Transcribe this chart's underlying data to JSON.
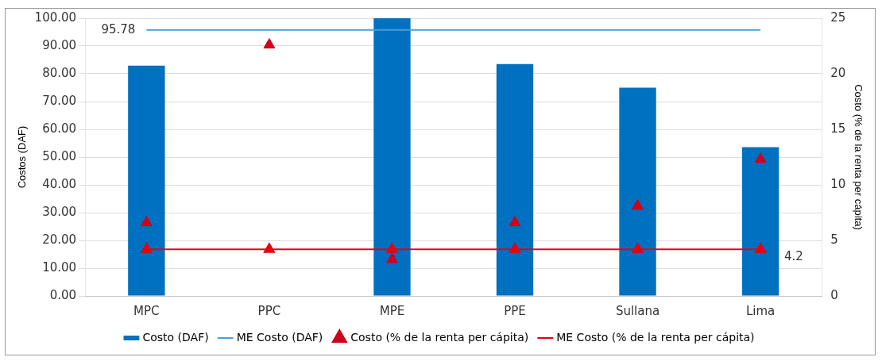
{
  "chart_data": {
    "type": "bar",
    "categories": [
      "MPC",
      "PPC",
      "MPE",
      "PPE",
      "Sullana",
      "Lima"
    ],
    "ylabel": "Costos (DAF)",
    "y2label": "Costo (% de la renta per cápita)",
    "ylim": [
      0,
      100
    ],
    "yticks": [
      {
        "value": 0,
        "label": "0.00"
      },
      {
        "value": 10,
        "label": "10.00"
      },
      {
        "value": 20,
        "label": "20.00"
      },
      {
        "value": 30,
        "label": "30.00"
      },
      {
        "value": 40,
        "label": "40.00"
      },
      {
        "value": 50,
        "label": "50.00"
      },
      {
        "value": 60,
        "label": "60.00"
      },
      {
        "value": 70,
        "label": "70.00"
      },
      {
        "value": 80,
        "label": "80.00"
      },
      {
        "value": 90,
        "label": "90.00"
      },
      {
        "value": 100,
        "label": "100.00"
      }
    ],
    "y2lim": [
      0,
      25
    ],
    "y2ticks": [
      0,
      5,
      10,
      15,
      20,
      25
    ],
    "grid": "y",
    "legend": "bottom",
    "series": [
      {
        "name": "Costo (DAF)",
        "color": "#0070c0",
        "values": [
          82.9,
          null,
          100,
          83.5,
          75,
          53.6
        ]
      },
      {
        "name": "ME Costo (DAF)",
        "type": "line",
        "color": "#4a9fd8",
        "marker": "none",
        "values": [
          95.78,
          95.78,
          95.78,
          95.78,
          95.78,
          95.78
        ],
        "value_labels": [
          "95.78",
          null,
          null,
          null,
          null,
          null
        ]
      },
      {
        "name": "Costo (% de la renta per cápita)",
        "type": "scatter",
        "axis": "y2",
        "color": "#d0021b",
        "marker": "triangle",
        "values": [
          6.6,
          22.6,
          3.3,
          6.6,
          8.1,
          12.3
        ]
      },
      {
        "name": "ME Costo (% de la renta per cápita)",
        "type": "line",
        "axis": "y2",
        "color": "#e8000f",
        "marker": "triangle",
        "values": [
          4.2,
          4.2,
          4.2,
          4.2,
          4.2,
          4.2
        ],
        "value_labels": [
          null,
          null,
          null,
          null,
          null,
          "4.2"
        ]
      }
    ]
  }
}
